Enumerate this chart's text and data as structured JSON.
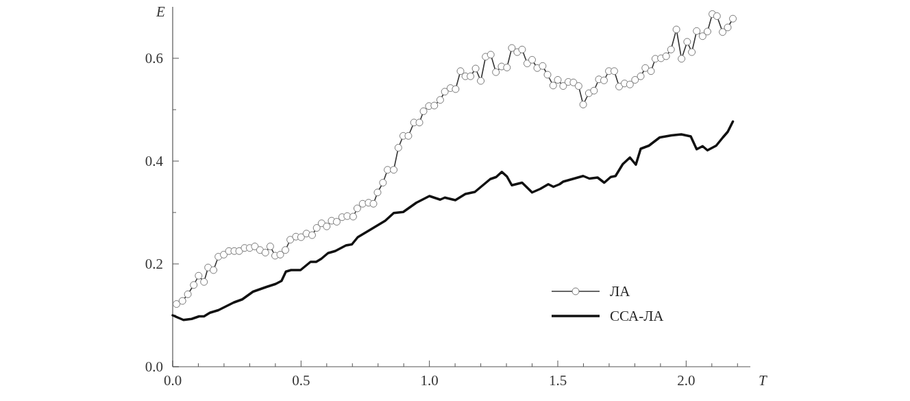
{
  "chart_data": {
    "type": "line",
    "xlabel": "T",
    "ylabel": "E",
    "xlim": [
      0,
      2.25
    ],
    "ylim": [
      0,
      0.7
    ],
    "xticks": [
      {
        "value": 0,
        "label": "0.0"
      },
      {
        "value": 0.1,
        "label": null
      },
      {
        "value": 0.2,
        "label": null
      },
      {
        "value": 0.3,
        "label": null
      },
      {
        "value": 0.4,
        "label": null
      },
      {
        "value": 0.5,
        "label": "0.5"
      },
      {
        "value": 0.6,
        "label": null
      },
      {
        "value": 0.7,
        "label": null
      },
      {
        "value": 0.8,
        "label": null
      },
      {
        "value": 0.9,
        "label": null
      },
      {
        "value": 1,
        "label": "1.0"
      },
      {
        "value": 1.1,
        "label": null
      },
      {
        "value": 1.2,
        "label": null
      },
      {
        "value": 1.3,
        "label": null
      },
      {
        "value": 1.4,
        "label": null
      },
      {
        "value": 1.5,
        "label": "1.5"
      },
      {
        "value": 1.6,
        "label": null
      },
      {
        "value": 1.7,
        "label": null
      },
      {
        "value": 1.8,
        "label": null
      },
      {
        "value": 1.9,
        "label": null
      },
      {
        "value": 2,
        "label": "2.0"
      },
      {
        "value": 2.1,
        "label": null
      },
      {
        "value": 2.2,
        "label": null
      }
    ],
    "yticks": [
      {
        "value": 0,
        "label": "0.0"
      },
      {
        "value": 0.1,
        "label": null
      },
      {
        "value": 0.2,
        "label": "0.2"
      },
      {
        "value": 0.3,
        "label": null
      },
      {
        "value": 0.4,
        "label": "0.4"
      },
      {
        "value": 0.5,
        "label": null
      },
      {
        "value": 0.6,
        "label": "0.6"
      }
    ],
    "grid": false,
    "legend": "bottom right",
    "series": [
      {
        "name": "ЛА",
        "color": "#333333",
        "marker": "circle",
        "x": [
          0.015,
          0.038,
          0.059,
          0.082,
          0.101,
          0.122,
          0.138,
          0.159,
          0.178,
          0.199,
          0.219,
          0.24,
          0.259,
          0.28,
          0.3,
          0.32,
          0.34,
          0.361,
          0.38,
          0.399,
          0.419,
          0.439,
          0.458,
          0.48,
          0.5,
          0.521,
          0.543,
          0.561,
          0.58,
          0.6,
          0.619,
          0.639,
          0.66,
          0.68,
          0.703,
          0.719,
          0.74,
          0.763,
          0.782,
          0.798,
          0.819,
          0.837,
          0.861,
          0.879,
          0.898,
          0.918,
          0.94,
          0.961,
          0.977,
          0.998,
          1.019,
          1.042,
          1.06,
          1.082,
          1.102,
          1.121,
          1.14,
          1.16,
          1.18,
          1.2,
          1.219,
          1.239,
          1.259,
          1.281,
          1.302,
          1.321,
          1.342,
          1.361,
          1.381,
          1.4,
          1.42,
          1.441,
          1.46,
          1.482,
          1.5,
          1.521,
          1.541,
          1.561,
          1.581,
          1.599,
          1.621,
          1.641,
          1.66,
          1.68,
          1.699,
          1.72,
          1.739,
          1.76,
          1.781,
          1.801,
          1.823,
          1.841,
          1.863,
          1.88,
          1.902,
          1.922,
          1.941,
          1.962,
          1.982,
          2.004,
          2.022,
          2.041,
          2.064,
          2.083,
          2.102,
          2.12,
          2.142,
          2.162,
          2.182
        ],
        "values": [
          0.122,
          0.128,
          0.141,
          0.159,
          0.177,
          0.165,
          0.193,
          0.188,
          0.214,
          0.218,
          0.225,
          0.225,
          0.225,
          0.231,
          0.231,
          0.234,
          0.227,
          0.222,
          0.234,
          0.216,
          0.218,
          0.227,
          0.247,
          0.253,
          0.252,
          0.259,
          0.256,
          0.27,
          0.279,
          0.273,
          0.284,
          0.282,
          0.291,
          0.293,
          0.292,
          0.308,
          0.317,
          0.319,
          0.317,
          0.339,
          0.358,
          0.383,
          0.383,
          0.426,
          0.449,
          0.449,
          0.475,
          0.475,
          0.497,
          0.507,
          0.508,
          0.519,
          0.535,
          0.542,
          0.54,
          0.575,
          0.565,
          0.565,
          0.58,
          0.556,
          0.603,
          0.607,
          0.573,
          0.584,
          0.582,
          0.62,
          0.612,
          0.617,
          0.59,
          0.597,
          0.581,
          0.585,
          0.568,
          0.547,
          0.558,
          0.546,
          0.554,
          0.553,
          0.546,
          0.51,
          0.532,
          0.537,
          0.559,
          0.557,
          0.575,
          0.575,
          0.545,
          0.551,
          0.549,
          0.558,
          0.565,
          0.581,
          0.575,
          0.599,
          0.6,
          0.604,
          0.617,
          0.656,
          0.599,
          0.632,
          0.612,
          0.653,
          0.643,
          0.652,
          0.686,
          0.682,
          0.651,
          0.66,
          0.677
        ]
      },
      {
        "name": "ССА-ЛА",
        "color": "#111111",
        "marker": "none",
        "x": [
          0,
          0.042,
          0.074,
          0.103,
          0.122,
          0.145,
          0.178,
          0.238,
          0.271,
          0.313,
          0.364,
          0.401,
          0.424,
          0.441,
          0.461,
          0.498,
          0.537,
          0.559,
          0.579,
          0.605,
          0.633,
          0.675,
          0.698,
          0.721,
          0.768,
          0.828,
          0.861,
          0.898,
          0.949,
          1,
          1.042,
          1.06,
          1.101,
          1.14,
          1.177,
          1.237,
          1.26,
          1.282,
          1.302,
          1.321,
          1.361,
          1.4,
          1.432,
          1.463,
          1.483,
          1.507,
          1.521,
          1.599,
          1.623,
          1.655,
          1.681,
          1.706,
          1.725,
          1.753,
          1.781,
          1.804,
          1.823,
          1.855,
          1.897,
          1.943,
          1.981,
          2.018,
          2.041,
          2.064,
          2.083,
          2.117,
          2.143,
          2.162,
          2.182
        ],
        "values": [
          0.1,
          0.091,
          0.093,
          0.098,
          0.098,
          0.105,
          0.11,
          0.125,
          0.131,
          0.146,
          0.155,
          0.161,
          0.167,
          0.185,
          0.188,
          0.188,
          0.204,
          0.204,
          0.21,
          0.221,
          0.225,
          0.236,
          0.238,
          0.252,
          0.266,
          0.284,
          0.299,
          0.301,
          0.319,
          0.332,
          0.325,
          0.329,
          0.324,
          0.336,
          0.34,
          0.365,
          0.369,
          0.379,
          0.37,
          0.353,
          0.358,
          0.339,
          0.346,
          0.355,
          0.35,
          0.355,
          0.36,
          0.371,
          0.366,
          0.368,
          0.358,
          0.369,
          0.371,
          0.394,
          0.407,
          0.393,
          0.424,
          0.43,
          0.446,
          0.45,
          0.452,
          0.448,
          0.423,
          0.429,
          0.421,
          0.43,
          0.446,
          0.457,
          0.477
        ]
      }
    ]
  }
}
